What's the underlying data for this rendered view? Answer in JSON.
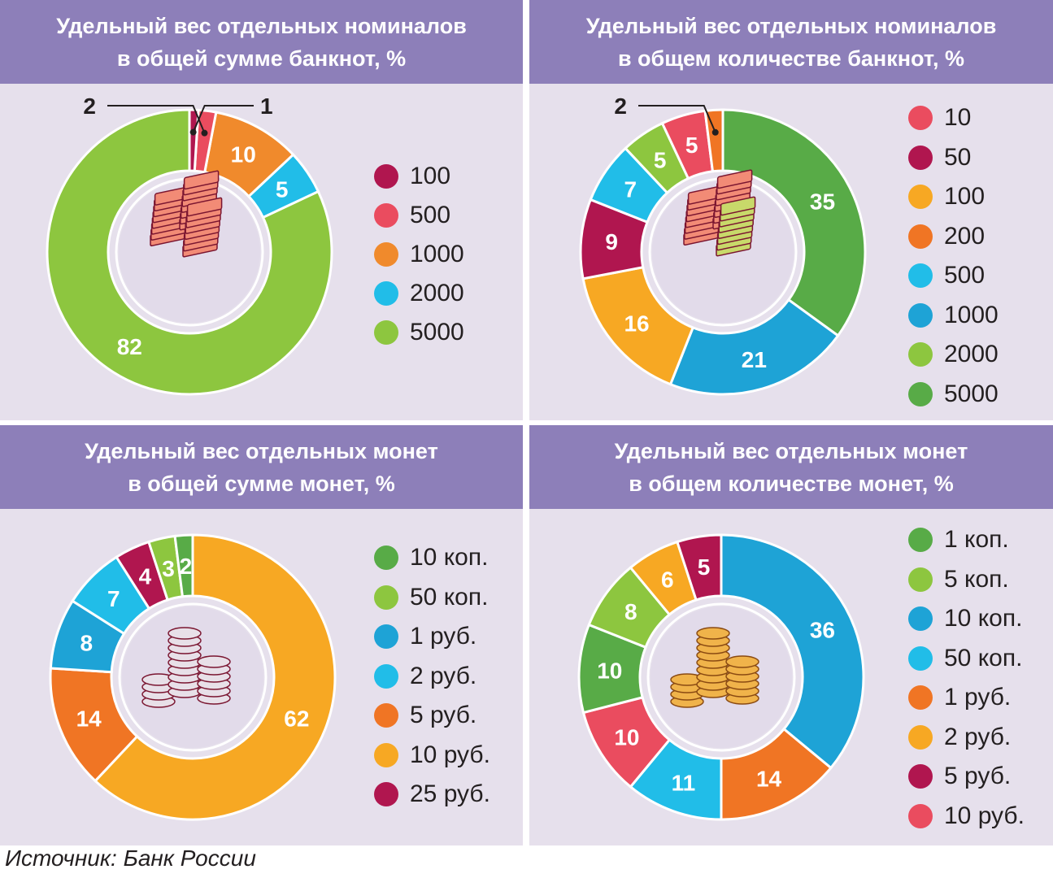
{
  "source": "Источник: Банк России",
  "chart_data": [
    {
      "type": "pie",
      "variant": "donut",
      "title": "Удельный вес отдельных номиналов\nв общей сумме банкнот, %",
      "icon": "banknotes-stack-icon",
      "categories": [
        "100",
        "500",
        "1000",
        "2000",
        "5000"
      ],
      "values": [
        1,
        2,
        10,
        5,
        82
      ],
      "labels": [
        "1",
        "2",
        "10",
        "5",
        "82"
      ],
      "colors": [
        "#b0164f",
        "#ea4c5f",
        "#f08a2c",
        "#21bde8",
        "#8dc63f"
      ],
      "legend_placement": "right"
    },
    {
      "type": "pie",
      "variant": "donut",
      "title": "Удельный вес отдельных номиналов\nв общем количестве банкнот, %",
      "icon": "banknotes-stack-icon",
      "categories": [
        "10",
        "50",
        "100",
        "200",
        "500",
        "1000",
        "2000",
        "5000"
      ],
      "values": [
        5,
        9,
        16,
        2,
        7,
        21,
        5,
        35
      ],
      "labels": [
        "5",
        "9",
        "16",
        "2",
        "7",
        "21",
        "5",
        "35"
      ],
      "colors": [
        "#ea4c5f",
        "#b0164f",
        "#f7a823",
        "#f07524",
        "#21bde8",
        "#1ea3d6",
        "#8dc63f",
        "#58ab47"
      ],
      "legend_placement": "right"
    },
    {
      "type": "pie",
      "variant": "donut",
      "title": "Удельный вес отдельных монет\nв общей сумме монет, %",
      "icon": "coins-stack-icon",
      "categories": [
        "10 коп.",
        "50 коп.",
        "1 руб.",
        "2 руб.",
        "5 руб.",
        "10 руб.",
        "25 руб."
      ],
      "values": [
        2,
        3,
        8,
        7,
        14,
        62,
        4
      ],
      "labels": [
        "2",
        "3",
        "8",
        "7",
        "14",
        "62",
        "4"
      ],
      "colors": [
        "#58ab47",
        "#8dc63f",
        "#1ea3d6",
        "#21bde8",
        "#f07524",
        "#f7a823",
        "#b0164f"
      ],
      "legend_placement": "right"
    },
    {
      "type": "pie",
      "variant": "donut",
      "title": "Удельный вес отдельных монет\nв общем количестве монет, %",
      "icon": "coins-stack-icon",
      "categories": [
        "1 коп.",
        "5 коп.",
        "10 коп.",
        "50 коп.",
        "1 руб.",
        "2 руб.",
        "5 руб.",
        "10 руб."
      ],
      "values": [
        10,
        8,
        36,
        11,
        14,
        6,
        5,
        10
      ],
      "labels": [
        "10",
        "8",
        "36",
        "11",
        "14",
        "6",
        "5",
        "10"
      ],
      "colors": [
        "#58ab47",
        "#8dc63f",
        "#1ea3d6",
        "#21bde8",
        "#f07524",
        "#f7a823",
        "#b0164f",
        "#ea4c5f"
      ],
      "legend_placement": "right"
    }
  ]
}
